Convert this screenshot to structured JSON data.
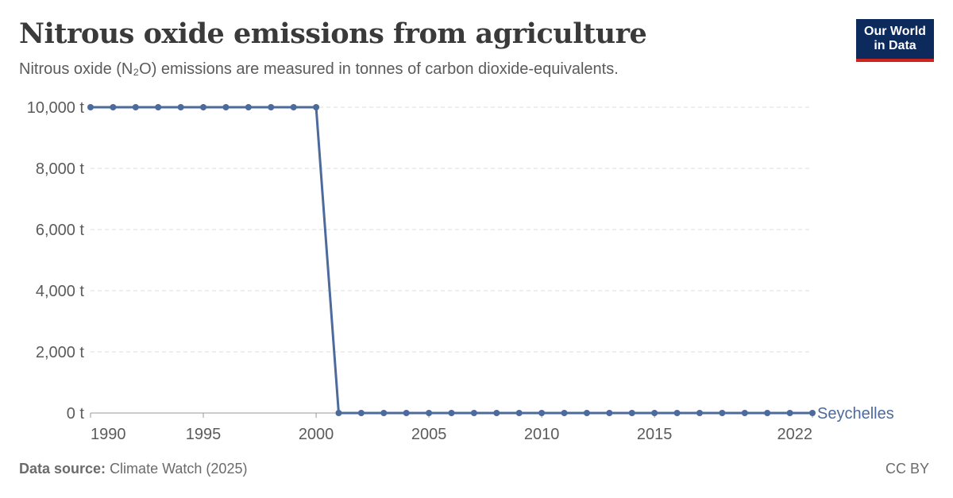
{
  "header": {
    "title": "Nitrous oxide emissions from agriculture",
    "subtitle": "Nitrous oxide (N₂O) emissions are measured in tonnes of carbon dioxide-equivalents."
  },
  "logo": {
    "line1": "Our World",
    "line2": "in Data"
  },
  "footer": {
    "source_label": "Data source:",
    "source_value": "Climate Watch (2025)",
    "license": "CC BY"
  },
  "colors": {
    "series": "#4c6a9c",
    "grid": "#dddddd",
    "logo_bg": "#0d2a5c",
    "logo_accent": "#ce261e"
  },
  "chart_data": {
    "type": "line",
    "title": "Nitrous oxide emissions from agriculture",
    "xlim": [
      1990,
      2022
    ],
    "ylim": [
      0,
      10000
    ],
    "x_ticks": [
      {
        "value": 1990,
        "label": "1990"
      },
      {
        "value": 1995,
        "label": "1995"
      },
      {
        "value": 2000,
        "label": "2000"
      },
      {
        "value": 2005,
        "label": "2005"
      },
      {
        "value": 2010,
        "label": "2010"
      },
      {
        "value": 2015,
        "label": "2015"
      },
      {
        "value": 2022,
        "label": "2022"
      }
    ],
    "y_ticks": [
      {
        "value": 0,
        "label": "0 t"
      },
      {
        "value": 2000,
        "label": "2,000 t"
      },
      {
        "value": 4000,
        "label": "4,000 t"
      },
      {
        "value": 6000,
        "label": "6,000 t"
      },
      {
        "value": 8000,
        "label": "8,000 t"
      },
      {
        "value": 10000,
        "label": "10,000 t"
      }
    ],
    "grid": "horizontal dashed",
    "series": [
      {
        "name": "Seychelles",
        "x": [
          1990,
          1991,
          1992,
          1993,
          1994,
          1995,
          1996,
          1997,
          1998,
          1999,
          2000,
          2001,
          2002,
          2003,
          2004,
          2005,
          2006,
          2007,
          2008,
          2009,
          2010,
          2011,
          2012,
          2013,
          2014,
          2015,
          2016,
          2017,
          2018,
          2019,
          2020,
          2021,
          2022
        ],
        "y": [
          10000,
          10000,
          10000,
          10000,
          10000,
          10000,
          10000,
          10000,
          10000,
          10000,
          10000,
          0,
          0,
          0,
          0,
          0,
          0,
          0,
          0,
          0,
          0,
          0,
          0,
          0,
          0,
          0,
          0,
          0,
          0,
          0,
          0,
          0,
          0
        ]
      }
    ]
  }
}
